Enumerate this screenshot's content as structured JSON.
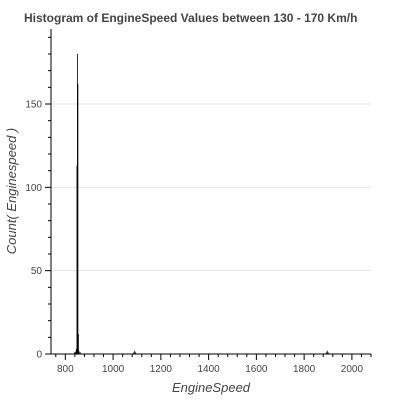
{
  "chart_data": {
    "type": "bar",
    "title": "Histogram of EngineSpeed Values between 130 - 170 Km/h",
    "xlabel": "EngineSpeed",
    "ylabel": "Count( Enginespeed )",
    "xlim": [
      740,
      2080
    ],
    "ylim": [
      0,
      195
    ],
    "xticks": [
      800,
      1000,
      1200,
      1400,
      1600,
      1800,
      2000
    ],
    "yticks": [
      0,
      50,
      100,
      150
    ],
    "bin_width": 2,
    "grid": true,
    "bins": [
      {
        "x": 838,
        "count": 1
      },
      {
        "x": 840,
        "count": 1
      },
      {
        "x": 842,
        "count": 1
      },
      {
        "x": 844,
        "count": 2
      },
      {
        "x": 846,
        "count": 3
      },
      {
        "x": 848,
        "count": 113
      },
      {
        "x": 850,
        "count": 180
      },
      {
        "x": 852,
        "count": 162
      },
      {
        "x": 854,
        "count": 12
      },
      {
        "x": 856,
        "count": 2
      },
      {
        "x": 858,
        "count": 1
      },
      {
        "x": 862,
        "count": 1
      },
      {
        "x": 1086,
        "count": 1
      },
      {
        "x": 1090,
        "count": 2
      },
      {
        "x": 1094,
        "count": 1
      },
      {
        "x": 1892,
        "count": 1
      },
      {
        "x": 1896,
        "count": 2
      },
      {
        "x": 1900,
        "count": 1
      }
    ]
  }
}
